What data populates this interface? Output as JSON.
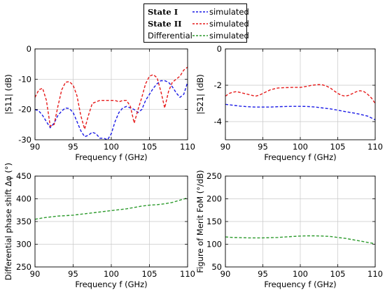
{
  "colors": {
    "state1": "#1a1ae6",
    "state2": "#e61a1a",
    "differential": "#2b9a2b",
    "grid": "#c8c8c8"
  },
  "legend": {
    "entries": [
      {
        "state": "State I",
        "label": "simulated",
        "color": "#1a1ae6",
        "bold": true
      },
      {
        "state": "State II",
        "label": "simulated",
        "color": "#e61a1a",
        "bold": true
      },
      {
        "state": "Differential",
        "label": "simulated",
        "color": "#2b9a2b",
        "bold": false
      }
    ]
  },
  "chart_data": [
    {
      "type": "line",
      "xlabel": "Frequency f (GHz)",
      "ylabel": "|S11| (dB)",
      "xlim": [
        90,
        110
      ],
      "ylim": [
        -30,
        0
      ],
      "xticks": [
        90,
        95,
        100,
        105,
        110
      ],
      "yticks": [
        -30,
        -20,
        -10,
        0
      ],
      "grid": true,
      "series": [
        {
          "name": "State I",
          "color": "#1a1ae6",
          "x": [
            90,
            90.5,
            91,
            91.5,
            92,
            92.5,
            93,
            93.5,
            94,
            94.5,
            95,
            95.5,
            96,
            96.5,
            97,
            97.5,
            98,
            98.5,
            99,
            99.5,
            100,
            100.5,
            101,
            101.5,
            102,
            102.5,
            103,
            103.5,
            104,
            104.5,
            105,
            105.5,
            106,
            106.5,
            107,
            107.5,
            108,
            108.5,
            109,
            109.5,
            110
          ],
          "y": [
            -20,
            -20.5,
            -22,
            -24,
            -26,
            -24.5,
            -22,
            -20.5,
            -19.5,
            -19.7,
            -21,
            -24,
            -27,
            -29,
            -28.5,
            -27.5,
            -28,
            -29.5,
            -29.5,
            -30,
            -28,
            -24,
            -21,
            -19.5,
            -19,
            -19.5,
            -20,
            -21,
            -20,
            -17,
            -15,
            -13,
            -11.5,
            -10.5,
            -10.5,
            -11,
            -12.5,
            -14.5,
            -16,
            -15,
            -11
          ]
        },
        {
          "name": "State II",
          "color": "#e61a1a",
          "x": [
            90,
            90.5,
            91,
            91.5,
            92,
            92.5,
            93,
            93.5,
            94,
            94.5,
            95,
            95.5,
            96,
            96.5,
            97,
            97.5,
            98,
            98.5,
            99,
            99.5,
            100,
            100.5,
            101,
            101.5,
            102,
            102.5,
            103,
            103.5,
            104,
            104.5,
            105,
            105.5,
            106,
            106.5,
            107,
            107.5,
            108,
            108.5,
            109,
            109.5,
            110
          ],
          "y": [
            -16,
            -13.5,
            -13,
            -17,
            -25.5,
            -25,
            -19,
            -13.5,
            -11,
            -10.8,
            -12,
            -15.5,
            -22,
            -26.5,
            -22,
            -18,
            -17.5,
            -17,
            -17,
            -17,
            -17,
            -17,
            -17.5,
            -17,
            -17,
            -19,
            -24.5,
            -20,
            -16,
            -11.5,
            -9,
            -8.5,
            -9.5,
            -14,
            -19.5,
            -14,
            -11,
            -10,
            -9,
            -7,
            -6
          ]
        }
      ]
    },
    {
      "type": "line",
      "xlabel": "Frequency f (GHz)",
      "ylabel": "|S21| (dB)",
      "xlim": [
        90,
        110
      ],
      "ylim": [
        -5,
        0
      ],
      "xticks": [
        90,
        95,
        100,
        105,
        110
      ],
      "yticks": [
        -4,
        -2,
        0
      ],
      "grid": true,
      "series": [
        {
          "name": "State I",
          "color": "#1a1ae6",
          "x": [
            90,
            91,
            92,
            93,
            94,
            95,
            96,
            97,
            98,
            99,
            100,
            101,
            102,
            103,
            104,
            105,
            106,
            107,
            108,
            109,
            110
          ],
          "y": [
            -3.05,
            -3.1,
            -3.15,
            -3.18,
            -3.2,
            -3.2,
            -3.2,
            -3.18,
            -3.17,
            -3.16,
            -3.16,
            -3.17,
            -3.2,
            -3.25,
            -3.3,
            -3.37,
            -3.45,
            -3.52,
            -3.6,
            -3.7,
            -3.9
          ]
        },
        {
          "name": "State II",
          "color": "#e61a1a",
          "x": [
            90,
            90.5,
            91,
            91.5,
            92,
            93,
            93.5,
            94,
            94.5,
            95,
            95.5,
            96,
            96.5,
            97,
            98,
            99,
            100,
            101,
            101.5,
            102,
            102.5,
            103,
            103.5,
            104,
            104.5,
            105,
            105.5,
            106,
            106.5,
            107,
            107.5,
            108,
            108.5,
            109,
            109.5,
            110
          ],
          "y": [
            -2.6,
            -2.45,
            -2.38,
            -2.35,
            -2.4,
            -2.5,
            -2.55,
            -2.6,
            -2.55,
            -2.45,
            -2.35,
            -2.25,
            -2.2,
            -2.15,
            -2.13,
            -2.12,
            -2.12,
            -2.05,
            -2.0,
            -1.98,
            -1.96,
            -1.98,
            -2.05,
            -2.15,
            -2.3,
            -2.45,
            -2.55,
            -2.6,
            -2.55,
            -2.45,
            -2.35,
            -2.3,
            -2.35,
            -2.5,
            -2.7,
            -3.0
          ]
        }
      ]
    },
    {
      "type": "line",
      "xlabel": "Frequency f (GHz)",
      "ylabel": "Differential phase shift Δφ (°)",
      "xlim": [
        90,
        110
      ],
      "ylim": [
        250,
        450
      ],
      "xticks": [
        90,
        95,
        100,
        105,
        110
      ],
      "yticks": [
        250,
        300,
        350,
        400,
        450
      ],
      "grid": true,
      "series": [
        {
          "name": "Differential",
          "color": "#2b9a2b",
          "x": [
            90,
            91,
            92,
            93,
            94,
            95,
            96,
            97,
            98,
            99,
            100,
            101,
            102,
            103,
            104,
            105,
            106,
            107,
            108,
            109,
            110
          ],
          "y": [
            355,
            358,
            360,
            362,
            363,
            364,
            366,
            368,
            370,
            372,
            374,
            376,
            378,
            381,
            384,
            386,
            387,
            389,
            392,
            397,
            402
          ]
        }
      ]
    },
    {
      "type": "line",
      "xlabel": "Frequency f (GHz)",
      "ylabel": "Figure of Merit FoM (°/dB)",
      "xlim": [
        90,
        110
      ],
      "ylim": [
        50,
        250
      ],
      "xticks": [
        90,
        95,
        100,
        105,
        110
      ],
      "yticks": [
        50,
        100,
        150,
        200,
        250
      ],
      "grid": true,
      "series": [
        {
          "name": "Differential",
          "color": "#2b9a2b",
          "x": [
            90,
            91,
            92,
            93,
            94,
            95,
            96,
            97,
            98,
            99,
            100,
            101,
            102,
            103,
            104,
            105,
            106,
            107,
            108,
            109,
            110
          ],
          "y": [
            116,
            115,
            114.5,
            114,
            114,
            114,
            114.5,
            115,
            116,
            117,
            118,
            118.5,
            118.5,
            118,
            117,
            115,
            113,
            110,
            107,
            104,
            101
          ]
        }
      ]
    }
  ]
}
